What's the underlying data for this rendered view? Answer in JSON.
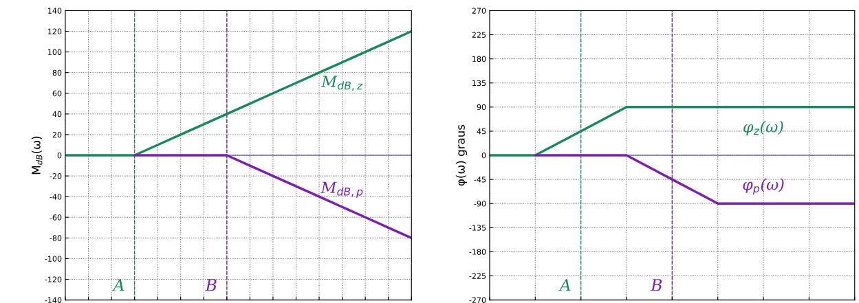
{
  "chart_data": [
    {
      "type": "line",
      "ylabel": "M$_{dB}$(ω)",
      "categories": [
        null,
        null,
        null,
        null,
        null,
        null,
        null,
        null,
        null,
        null,
        null,
        null,
        null,
        null,
        null,
        null
      ],
      "series": [
        {
          "name": "M$_{dB,z}$",
          "color": "#1a8a5e",
          "values": [
            0,
            0,
            0,
            0,
            10,
            20,
            30,
            40,
            50,
            60,
            70,
            80,
            90,
            100,
            110,
            120
          ]
        },
        {
          "name": "M$_{dB,p}$",
          "color": "#7a1fb8",
          "values": [
            null,
            null,
            null,
            0,
            0,
            0,
            0,
            0,
            -10,
            -20,
            -30,
            -40,
            -50,
            -60,
            -70,
            -80
          ]
        }
      ],
      "ylim": [
        -140,
        140
      ],
      "yticks": [
        -140,
        -120,
        -100,
        -80,
        -60,
        -40,
        -20,
        0,
        20,
        40,
        60,
        80,
        100,
        120,
        140
      ],
      "ref_lines": [
        {
          "axis": "y",
          "value": 0,
          "color": "#6a6af0",
          "line_style": "solid"
        }
      ],
      "annotations": [
        "A",
        "B"
      ],
      "grid": true,
      "tick_labels": "y"
    },
    {
      "type": "line",
      "ylabel": "φ(ω) graus",
      "categories": [
        null,
        null,
        null,
        null,
        null,
        null,
        null,
        null,
        null
      ],
      "series": [
        {
          "name": "φ$_{z}$(ω)",
          "color": "#1a8a5e",
          "values": [
            0,
            0,
            45,
            90,
            90,
            90,
            90,
            90,
            90
          ]
        },
        {
          "name": "φ$_{p}$(ω)",
          "color": "#7a1fb8",
          "values": [
            null,
            0,
            0,
            0,
            -45,
            -90,
            -90,
            -90,
            -90
          ]
        }
      ],
      "ylim": [
        -270,
        270
      ],
      "yticks": [
        -270,
        -225,
        -180,
        -135,
        -90,
        -45,
        0,
        45,
        90,
        135,
        180,
        225,
        270
      ],
      "ref_lines": [
        {
          "axis": "y",
          "value": 0,
          "color": "#6a6af0",
          "line_style": "solid"
        }
      ],
      "annotations": [
        "A",
        "B"
      ],
      "grid": true,
      "tick_labels": "y"
    }
  ]
}
